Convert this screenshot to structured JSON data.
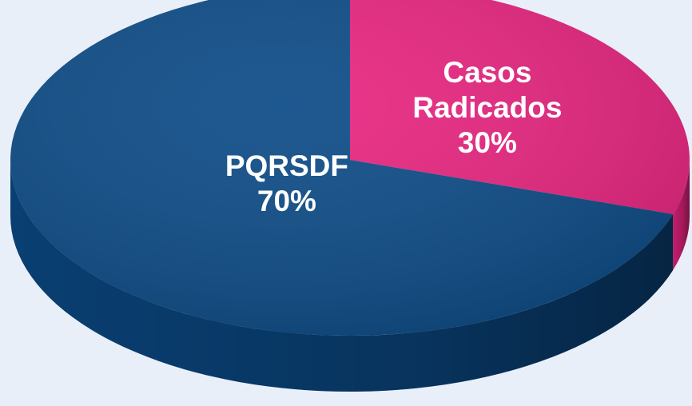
{
  "chart_data": {
    "type": "pie",
    "categories": [
      "Casos Radicados",
      "PQRSDF"
    ],
    "values": [
      30,
      70
    ],
    "value_labels": [
      "30%",
      "70%"
    ],
    "colors": [
      "#e8237f",
      "#0b4a86"
    ]
  }
}
